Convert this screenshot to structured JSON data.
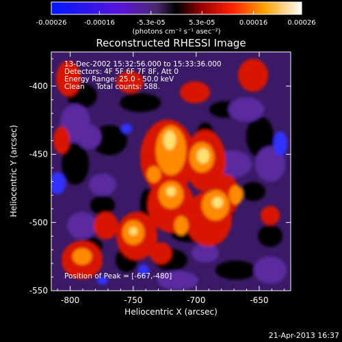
{
  "chart_data": {
    "type": "heatmap",
    "title": "Reconstructed RHESSI Image",
    "xlabel": "Heliocentric X (arcsec)",
    "ylabel": "Heliocentric Y (arcsec)",
    "xlim": [
      -815,
      -625
    ],
    "ylim": [
      -550,
      -375
    ],
    "x_ticks": [
      "-800",
      "-750",
      "-700",
      "-650"
    ],
    "x_tick_values": [
      -800,
      -750,
      -700,
      -650
    ],
    "y_ticks": [
      "-400",
      "-450",
      "-500",
      "-550"
    ],
    "y_tick_values": [
      -400,
      -450,
      -500,
      -550
    ],
    "colorbar": {
      "min": -0.00026,
      "max": 0.00026,
      "ticks": [
        "-0.00026",
        "-0.00016",
        "-5.3e-05",
        "5.3e-05",
        "0.00016",
        "0.00026"
      ],
      "tick_values": [
        -0.00026,
        -0.00016,
        -5.3e-05,
        5.3e-05,
        0.00016,
        0.00026
      ],
      "unit_label": "(photons cm⁻² s⁻¹ asec⁻²)"
    },
    "annotations": {
      "time": "13-Dec-2002 15:32:56.000 to 15:33:36.000",
      "detectors": "Detectors: 4F 5F 6F 7F 8F, Att 0",
      "energy": "Energy Range: 25.0 - 50.0 keV",
      "clean": "Clean     Total counts: 588.",
      "peak": "Position of Peak = [-667,-480]"
    },
    "peak": [
      -667,
      -480
    ]
  },
  "footer": {
    "timestamp": "21-Apr-2013 16:37"
  }
}
